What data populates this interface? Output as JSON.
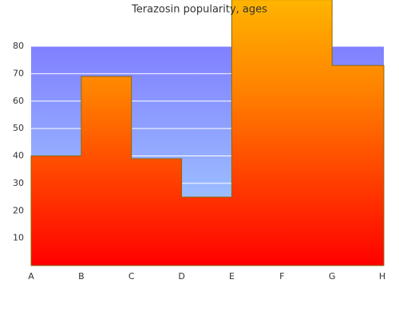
{
  "chart_data": {
    "type": "step-area",
    "title": "Terazosin popularity, ages",
    "categories": [
      "A",
      "B",
      "C",
      "D",
      "E",
      "F",
      "G",
      "H"
    ],
    "values": [
      40,
      69,
      39,
      25,
      97,
      97,
      73,
      73
    ],
    "ylim": [
      0,
      80
    ],
    "yticks": [
      10,
      20,
      30,
      40,
      50,
      60,
      70,
      80
    ],
    "grid": true,
    "color": "#ff8000"
  }
}
